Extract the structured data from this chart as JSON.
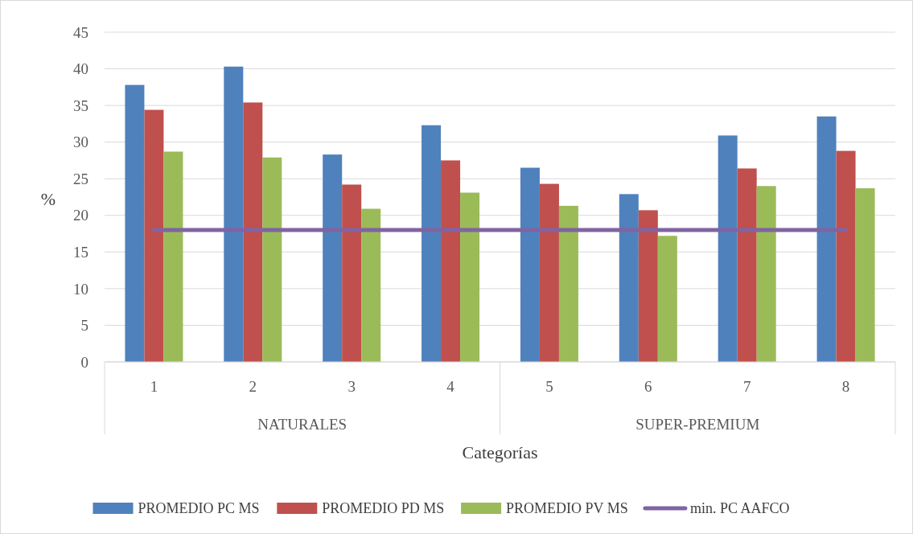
{
  "chart_data": {
    "type": "bar",
    "xlabel": "Categorías",
    "ylabel": "%",
    "categories": [
      "1",
      "2",
      "3",
      "4",
      "5",
      "6",
      "7",
      "8"
    ],
    "series": [
      {
        "name": "PROMEDIO PC MS",
        "color": "#4f81bd",
        "values": [
          37.8,
          40.3,
          28.3,
          32.3,
          26.5,
          22.9,
          30.9,
          33.5
        ]
      },
      {
        "name": "PROMEDIO PD MS",
        "color": "#c0504d",
        "values": [
          34.4,
          35.4,
          24.2,
          27.5,
          24.3,
          20.7,
          26.4,
          28.8
        ]
      },
      {
        "name": "PROMEDIO PV MS",
        "color": "#9bbb59",
        "values": [
          28.7,
          27.9,
          20.9,
          23.1,
          21.3,
          17.2,
          24.0,
          23.7
        ]
      },
      {
        "name": "min. PC AAFCO",
        "color": "#8064a2",
        "type": "line",
        "values": [
          18,
          18,
          18,
          18,
          18,
          18,
          18,
          18
        ]
      }
    ],
    "annotations": [
      "NATURALES",
      "SUPER-PREMIUM"
    ],
    "ylim": [
      0,
      45
    ],
    "yticks": [
      0,
      5,
      10,
      15,
      20,
      25,
      30,
      35,
      40,
      45
    ],
    "grid": "y",
    "legend": "bottom",
    "marker": "none"
  }
}
